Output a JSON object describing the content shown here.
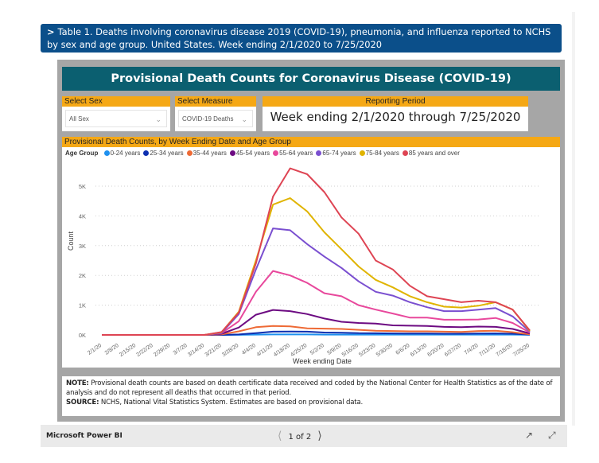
{
  "banner": {
    "chevron": ">",
    "text": "Table 1. Deaths involving coronavirus disease 2019 (COVID-19), pneumonia, and influenza reported to NCHS by sex and age group. United States. Week ending 2/1/2020 to 7/25/2020"
  },
  "report": {
    "title": "Provisional Death Counts for Coronavirus Disease (COVID-19)",
    "slicers": {
      "sex": {
        "label": "Select Sex",
        "value": "All Sex"
      },
      "measure": {
        "label": "Select Measure",
        "value": "COVID-19 Deaths"
      }
    },
    "period": {
      "label": "Reporting Period",
      "value": "Week ending 2/1/2020 through 7/25/2020"
    },
    "chart_header": "Provisional Death Counts, by Week Ending Date and Age Group",
    "notes": {
      "note_label": "NOTE:",
      "note_text": "Provisional death counts are based on death certificate data received and coded by the National Center for Health Statistics as of the date of analysis and do not represent all deaths that occurred in that period.",
      "source_label": "SOURCE:",
      "source_text": "NCHS, National Vital Statistics System. Estimates are based on provisional data."
    }
  },
  "footer": {
    "brand": "Microsoft Power BI",
    "page_indicator": "1 of 2",
    "prev_icon": "chevron-left",
    "next_icon": "chevron-right",
    "share_icon": "share",
    "fullscreen_icon": "expand"
  },
  "chart_data": {
    "type": "line",
    "title": "Provisional Death Counts, by Week Ending Date and Age Group",
    "legend_title": "Age Group",
    "legend_position": "top-left",
    "xlabel": "Week ending Date",
    "ylabel": "Count",
    "ylim": [
      0,
      5600
    ],
    "yticks": [
      0,
      1000,
      2000,
      3000,
      4000,
      5000
    ],
    "ytick_labels": [
      "0K",
      "1K",
      "2K",
      "3K",
      "4K",
      "5K"
    ],
    "grid": true,
    "x": [
      "2/1/20",
      "2/8/20",
      "2/15/20",
      "2/22/20",
      "2/29/20",
      "3/7/20",
      "3/14/20",
      "3/21/20",
      "3/28/20",
      "4/4/20",
      "4/11/20",
      "4/18/20",
      "4/25/20",
      "5/2/20",
      "5/9/20",
      "5/16/20",
      "5/23/20",
      "5/30/20",
      "6/6/20",
      "6/13/20",
      "6/20/20",
      "6/27/20",
      "7/4/20",
      "7/11/20",
      "7/18/20",
      "7/25/20"
    ],
    "series": [
      {
        "name": "0-24 years",
        "color": "#1e90ef",
        "values": [
          0,
          0,
          0,
          0,
          0,
          0,
          0,
          0,
          2,
          10,
          15,
          15,
          15,
          12,
          12,
          10,
          10,
          10,
          10,
          10,
          10,
          10,
          10,
          12,
          10,
          3
        ]
      },
      {
        "name": "25-34 years",
        "color": "#0c2fb0",
        "values": [
          0,
          0,
          0,
          0,
          0,
          0,
          0,
          0,
          15,
          60,
          110,
          115,
          110,
          80,
          75,
          60,
          55,
          50,
          45,
          45,
          40,
          40,
          45,
          50,
          40,
          10
        ]
      },
      {
        "name": "35-44 years",
        "color": "#ee6a35",
        "values": [
          0,
          0,
          0,
          0,
          0,
          0,
          0,
          20,
          120,
          260,
          300,
          290,
          220,
          210,
          200,
          170,
          140,
          130,
          120,
          120,
          110,
          100,
          130,
          140,
          90,
          20
        ]
      },
      {
        "name": "45-54 years",
        "color": "#6d0b82",
        "values": [
          0,
          0,
          0,
          0,
          0,
          0,
          0,
          40,
          250,
          680,
          840,
          800,
          700,
          550,
          440,
          400,
          380,
          320,
          310,
          300,
          270,
          260,
          280,
          270,
          200,
          50
        ]
      },
      {
        "name": "55-64 years",
        "color": "#e8489c",
        "values": [
          0,
          0,
          0,
          0,
          0,
          0,
          0,
          60,
          460,
          1450,
          2150,
          2000,
          1750,
          1400,
          1300,
          1000,
          850,
          720,
          580,
          580,
          510,
          510,
          520,
          570,
          400,
          80
        ]
      },
      {
        "name": "65-74 years",
        "color": "#7a4fd0",
        "values": [
          0,
          0,
          0,
          0,
          0,
          0,
          0,
          70,
          700,
          2200,
          3580,
          3520,
          3050,
          2630,
          2250,
          1800,
          1450,
          1320,
          1100,
          930,
          800,
          800,
          850,
          900,
          620,
          110
        ]
      },
      {
        "name": "75-84 years",
        "color": "#e0b400",
        "values": [
          0,
          0,
          0,
          0,
          0,
          0,
          0,
          90,
          780,
          2500,
          4380,
          4600,
          4150,
          3450,
          2880,
          2300,
          1850,
          1600,
          1300,
          1100,
          950,
          920,
          980,
          1100,
          850,
          130
        ]
      },
      {
        "name": "85 years and over",
        "color": "#de4453",
        "values": [
          0,
          0,
          0,
          0,
          0,
          0,
          0,
          100,
          750,
          2400,
          4650,
          5600,
          5400,
          4800,
          3950,
          3400,
          2500,
          2200,
          1650,
          1300,
          1200,
          1100,
          1150,
          1100,
          850,
          150
        ]
      }
    ]
  }
}
